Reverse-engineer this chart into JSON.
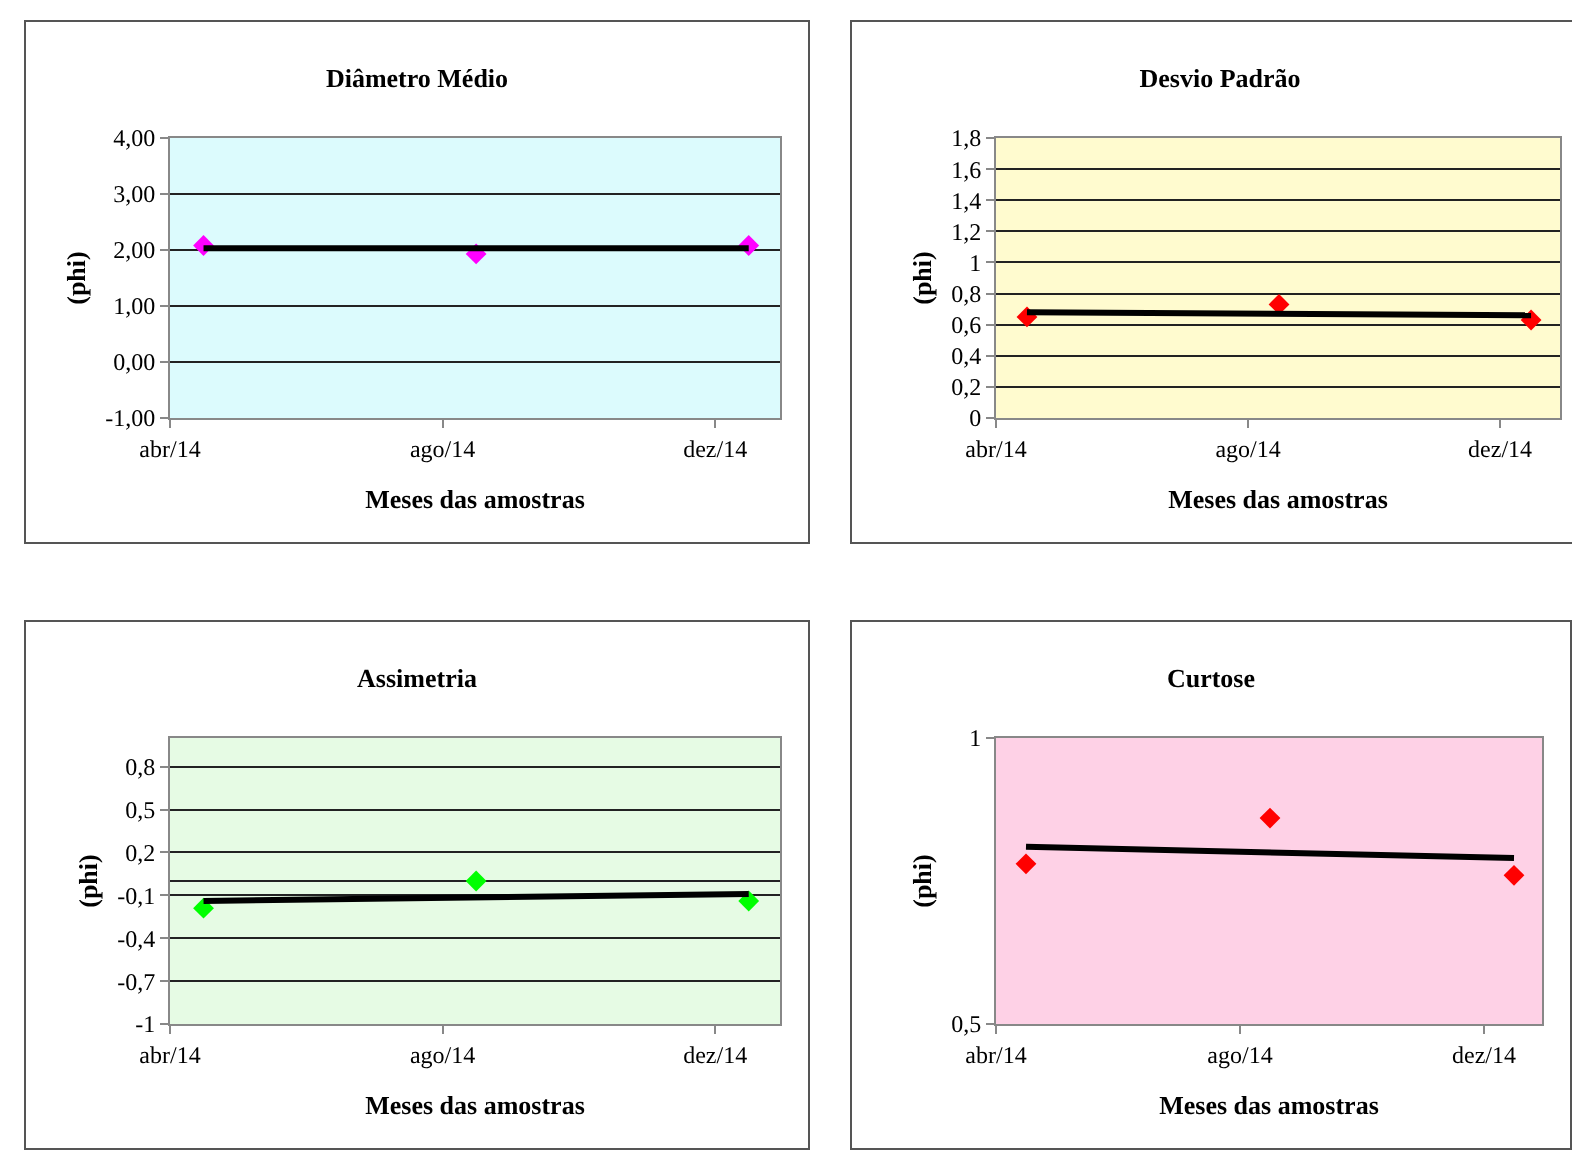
{
  "chart_data": [
    {
      "type": "scatter",
      "title": "Diâmetro Médio",
      "xlabel": "Meses das amostras",
      "ylabel": "(phi)",
      "x": [
        "2014-04-16",
        "2014-08-16",
        "2014-12-16"
      ],
      "xlim": [
        "2014-04-01",
        "2014-12-30"
      ],
      "xticks": [
        {
          "value": "2014-04-01",
          "label": "abr/14"
        },
        {
          "value": "2014-08-01",
          "label": "ago/14"
        },
        {
          "value": "2014-12-01",
          "label": "dez/14"
        }
      ],
      "ylim": [
        -1,
        4
      ],
      "yticks": [
        {
          "value": -1,
          "label": "-1,00"
        },
        {
          "value": 0,
          "label": "0,00"
        },
        {
          "value": 1,
          "label": "1,00"
        },
        {
          "value": 2,
          "label": "2,00"
        },
        {
          "value": 3,
          "label": "3,00"
        },
        {
          "value": 4,
          "label": "4,00"
        }
      ],
      "grid": "y",
      "series": [
        {
          "type": "scatter",
          "color": "#ff00ff",
          "marker": "diamond",
          "values": [
            2.08,
            1.93,
            2.08
          ]
        },
        {
          "type": "line",
          "color": "#000000",
          "marker": "none",
          "x": [
            "2014-04-16",
            "2014-12-16"
          ],
          "values": [
            2.03,
            2.03
          ]
        }
      ]
    },
    {
      "type": "scatter",
      "title": "Desvio Padrão",
      "xlabel": "Meses das amostras",
      "ylabel": "(phi)",
      "x": [
        "2014-04-16",
        "2014-08-16",
        "2014-12-16"
      ],
      "xlim": [
        "2014-04-01",
        "2014-12-30"
      ],
      "xticks": [
        {
          "value": "2014-04-01",
          "label": "abr/14"
        },
        {
          "value": "2014-08-01",
          "label": "ago/14"
        },
        {
          "value": "2014-12-01",
          "label": "dez/14"
        }
      ],
      "ylim": [
        0,
        1.8
      ],
      "yticks": [
        0,
        {
          "value": 0.2,
          "label": "0,2"
        },
        {
          "value": 0.4,
          "label": "0,4"
        },
        {
          "value": 0.6,
          "label": "0,6"
        },
        {
          "value": 0.8,
          "label": "0,8"
        },
        1,
        {
          "value": 1.2,
          "label": "1,2"
        },
        {
          "value": 1.4,
          "label": "1,4"
        },
        {
          "value": 1.6,
          "label": "1,6"
        },
        {
          "value": 1.8,
          "label": "1,8"
        }
      ],
      "grid": "y",
      "series": [
        {
          "type": "scatter",
          "color": "#ff0000",
          "marker": "diamond",
          "values": [
            0.65,
            0.73,
            0.63
          ]
        },
        {
          "type": "line",
          "color": "#000000",
          "marker": "none",
          "x": [
            "2014-04-16",
            "2014-12-16"
          ],
          "values": [
            0.68,
            0.66
          ]
        }
      ]
    },
    {
      "type": "scatter",
      "title": "Assimetria",
      "xlabel": "Meses das amostras",
      "ylabel": "(phi)",
      "x": [
        "2014-04-16",
        "2014-08-16",
        "2014-12-16"
      ],
      "xlim": [
        "2014-04-01",
        "2014-12-30"
      ],
      "xticks": [
        {
          "value": "2014-04-01",
          "label": "abr/14"
        },
        {
          "value": "2014-08-01",
          "label": "ago/14"
        },
        {
          "value": "2014-12-01",
          "label": "dez/14"
        }
      ],
      "ylim": [
        -1,
        1
      ],
      "yticks": [
        -1,
        {
          "value": -0.7,
          "label": "-0,7"
        },
        {
          "value": -0.4,
          "label": "-0,4"
        },
        {
          "value": -0.1,
          "label": "-0,1"
        },
        {
          "value": 0.2,
          "label": "0,2"
        },
        {
          "value": 0.5,
          "label": "0,5"
        },
        {
          "value": 0.8,
          "label": "0,8"
        }
      ],
      "grid": "y",
      "series": [
        {
          "type": "scatter",
          "color": "#00ff00",
          "marker": "diamond",
          "values": [
            -0.19,
            0.0,
            -0.14
          ]
        },
        {
          "type": "line",
          "color": "#000000",
          "marker": "none",
          "x": [
            "2014-04-16",
            "2014-12-16"
          ],
          "values": [
            -0.14,
            -0.09
          ]
        }
      ]
    },
    {
      "type": "scatter",
      "title": "Curtose",
      "xlabel": "Meses das amostras",
      "ylabel": "(phi)",
      "x": [
        "2014-04-16",
        "2014-08-16",
        "2014-12-16"
      ],
      "xlim": [
        "2014-04-01",
        "2014-12-30"
      ],
      "xticks": [
        {
          "value": "2014-04-01",
          "label": "abr/14"
        },
        {
          "value": "2014-08-01",
          "label": "ago/14"
        },
        {
          "value": "2014-12-01",
          "label": "dez/14"
        }
      ],
      "ylim": [
        0.5,
        1
      ],
      "yticks": [
        {
          "value": 0.5,
          "label": "0,5"
        },
        1
      ],
      "grid": false,
      "series": [
        {
          "type": "scatter",
          "color": "#ff0000",
          "marker": "diamond",
          "values": [
            0.78,
            0.86,
            0.76
          ]
        },
        {
          "type": "line",
          "color": "#000000",
          "marker": "none",
          "x": [
            "2014-04-16",
            "2014-12-16"
          ],
          "values": [
            0.81,
            0.79
          ]
        }
      ]
    }
  ]
}
